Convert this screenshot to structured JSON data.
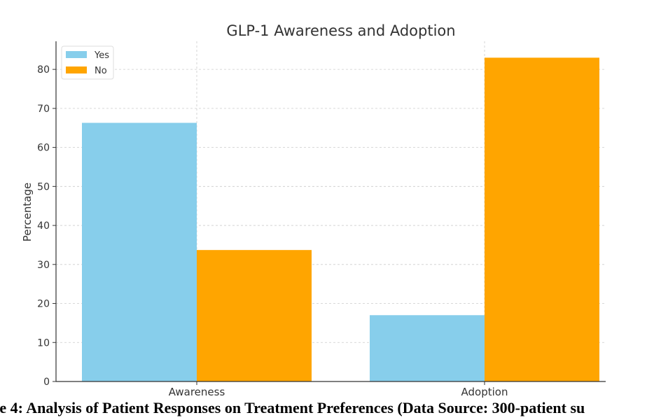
{
  "chart_data": {
    "type": "bar",
    "title": "GLP-1 Awareness and Adoption",
    "xlabel": "",
    "ylabel": "Percentage",
    "categories": [
      "Awareness",
      "Adoption"
    ],
    "series": [
      {
        "name": "Yes",
        "values": [
          66.3,
          17.0
        ],
        "color": "#87ceeb"
      },
      {
        "name": "No",
        "values": [
          33.7,
          83.0
        ],
        "color": "#ffa500"
      }
    ],
    "ylim": [
      0,
      87.2
    ],
    "yticks": [
      0,
      10,
      20,
      30,
      40,
      50,
      60,
      70,
      80
    ],
    "grid": true,
    "legend_position": "top-left"
  },
  "caption": "re 4: Analysis of Patient Responses on Treatment Preferences (Data Source: 300-patient su"
}
